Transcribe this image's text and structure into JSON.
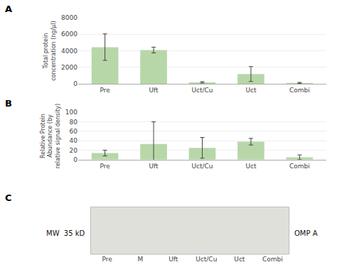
{
  "chart_data": [
    {
      "type": "bar",
      "title": "A",
      "categories": [
        "Pre",
        "Uft",
        "Uct/Cu",
        "Uct",
        "Combi"
      ],
      "values": [
        4450,
        4100,
        200,
        1200,
        130
      ],
      "errors": [
        1600,
        350,
        80,
        900,
        60
      ],
      "ylabel": "Total protein\nconcentration (ng/μl)",
      "ylim": [
        0,
        8000
      ],
      "yticks": [
        0,
        2000,
        4000,
        6000,
        8000
      ],
      "color": "#b7d7a8",
      "grid": true
    },
    {
      "type": "bar",
      "title": "B",
      "categories": [
        "Pre",
        "Uft",
        "Uct/Cu",
        "Uct",
        "Combi"
      ],
      "values": [
        14,
        33,
        25,
        38,
        5
      ],
      "errors": [
        6,
        47,
        22,
        7,
        5
      ],
      "ylabel": "Relative Protein\nAbundance (by\nrelative signal density)",
      "ylim": [
        0,
        100
      ],
      "yticks": [
        0,
        20,
        40,
        60,
        80,
        100
      ],
      "color": "#b7d7a8",
      "grid": true
    },
    {
      "type": "blot",
      "title": "C",
      "categories": [
        "Pre",
        "M",
        "Uft",
        "Uct/Cu",
        "Uct",
        "Combi"
      ],
      "annotations": [
        "MW  35 kD",
        "OMP A"
      ],
      "color": "#e0e0da"
    }
  ]
}
